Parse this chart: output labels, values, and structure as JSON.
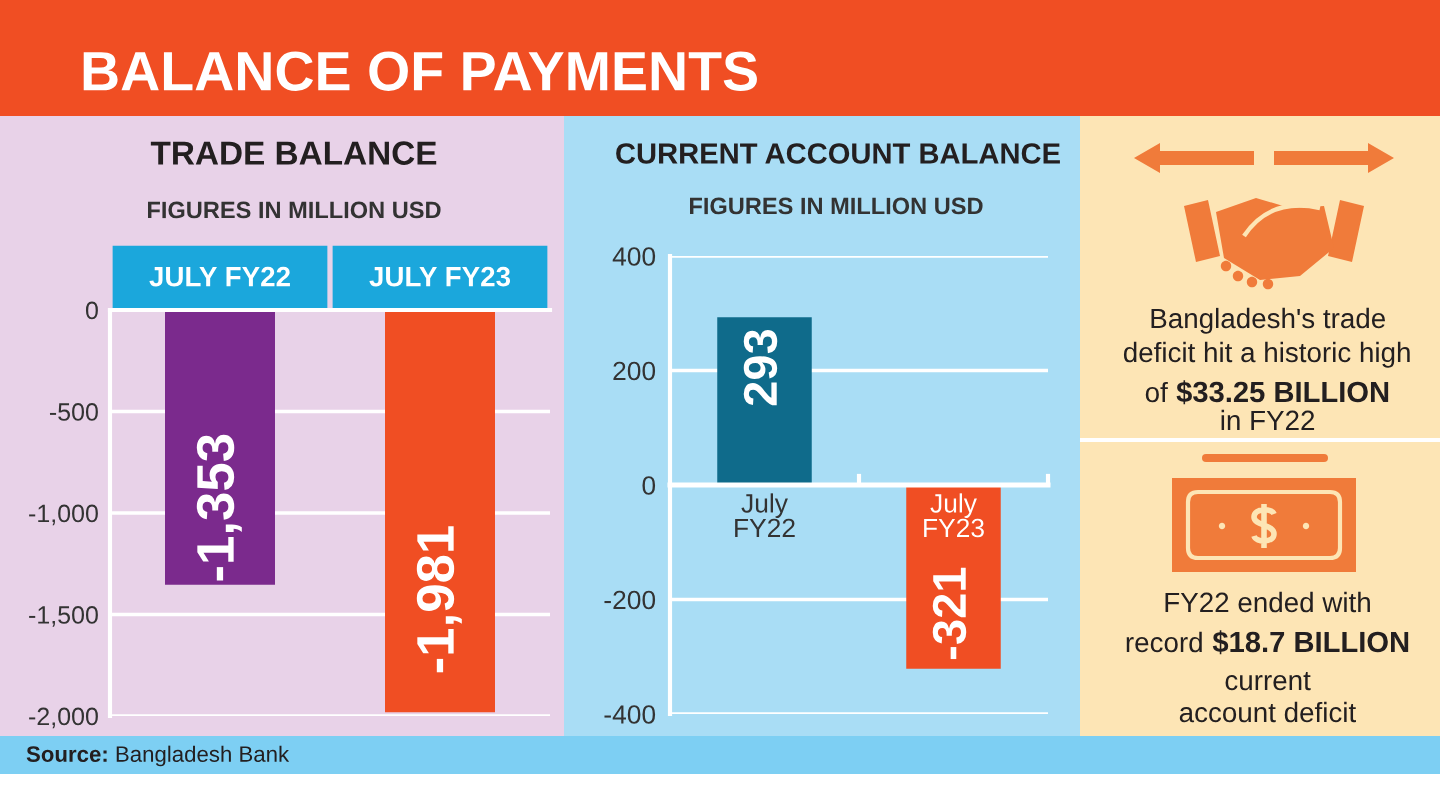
{
  "chart_data": [
    {
      "type": "other",
      "title": "BALANCE OF PAYMENTS",
      "annotations": [
        "Source: Bangladesh Bank"
      ]
    },
    {
      "type": "bar",
      "title": "TRADE BALANCE",
      "subtitle": "FIGURES IN MILLION USD",
      "categories": [
        "JULY FY22",
        "JULY FY23"
      ],
      "values": [
        -1353,
        -1981
      ],
      "colors": [
        "#7b2a8d",
        "#f04e23"
      ],
      "value_labels": [
        "-1,353",
        "-1,981"
      ],
      "ylim": [
        -2000,
        0
      ],
      "yticks": [
        0,
        -500,
        {
          "value": -1000,
          "label": "-1,000"
        },
        {
          "value": -1500,
          "label": "-1,500"
        },
        {
          "value": -2000,
          "label": "-2,000"
        }
      ],
      "grid": "y"
    },
    {
      "type": "bar",
      "title": "CURRENT ACCOUNT BALANCE",
      "subtitle": "FIGURES IN MILLION USD",
      "categories": [
        "July FY22",
        "July FY23"
      ],
      "values": [
        293,
        -321
      ],
      "colors": [
        "#0f6b8b",
        "#f04e23"
      ],
      "value_labels": [
        "293",
        "-321"
      ],
      "ylim": [
        -400,
        400
      ],
      "yticks": [
        -400,
        -200,
        0,
        200,
        400
      ],
      "grid": "y"
    },
    {
      "type": "other",
      "annotations": [
        "Bangladesh's trade",
        "deficit hit a historic high",
        "of",
        "$33.25 BILLION",
        "in FY22",
        "FY22 ended with",
        "record",
        "$18.7 BILLION",
        "current",
        "account deficit"
      ]
    }
  ]
}
